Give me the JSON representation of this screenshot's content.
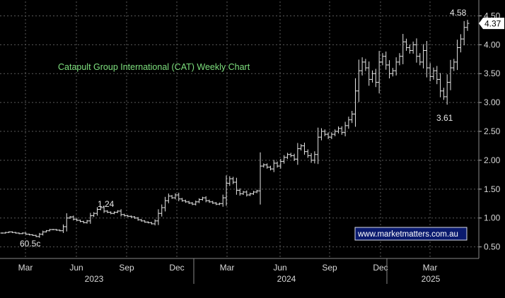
{
  "chart_data": {
    "type": "ohlc",
    "title": "Catapult Group International (CAT) Weekly Chart",
    "watermark": "www.marketmatters.com.au",
    "last_price_label": "4.37",
    "ylim": [
      0.3,
      4.75
    ],
    "y_ticks": [
      "0.50",
      "1.00",
      "1.50",
      "2.00",
      "2.50",
      "3.00",
      "3.50",
      "4.00",
      "4.50"
    ],
    "x_month_ticks": [
      "Mar",
      "Jun",
      "Sep",
      "Dec",
      "Mar",
      "Jun",
      "Sep",
      "Dec",
      "Mar"
    ],
    "x_year_labels": [
      "2023",
      "2024",
      "2025"
    ],
    "annotations": [
      {
        "text": "4.58",
        "value": 4.58
      },
      {
        "text": "1.24",
        "value": 1.24
      },
      {
        "text": "60.5c",
        "value": 0.605
      },
      {
        "text": "3.61",
        "value": 3.61
      }
    ],
    "closes": [
      0.74,
      0.75,
      0.76,
      0.75,
      0.74,
      0.73,
      0.74,
      0.72,
      0.71,
      0.7,
      0.68,
      0.72,
      0.76,
      0.78,
      0.8,
      0.8,
      0.79,
      0.78,
      0.85,
      1.0,
      1.02,
      0.98,
      0.96,
      0.94,
      0.92,
      0.95,
      1.04,
      1.08,
      1.15,
      1.18,
      1.12,
      1.1,
      1.08,
      1.1,
      1.12,
      1.06,
      1.04,
      1.03,
      1.02,
      1.0,
      0.97,
      0.95,
      0.93,
      0.92,
      0.9,
      0.95,
      1.08,
      1.18,
      1.3,
      1.38,
      1.35,
      1.4,
      1.33,
      1.3,
      1.28,
      1.26,
      1.24,
      1.28,
      1.32,
      1.35,
      1.3,
      1.28,
      1.26,
      1.24,
      1.25,
      1.35,
      1.6,
      1.68,
      1.62,
      1.48,
      1.42,
      1.45,
      1.4,
      1.42,
      1.45,
      1.47,
      1.9,
      1.92,
      1.88,
      1.85,
      1.95,
      1.9,
      1.98,
      2.05,
      2.1,
      2.08,
      2.02,
      2.2,
      2.25,
      2.15,
      2.08,
      2.0,
      2.1,
      2.4,
      2.5,
      2.45,
      2.4,
      2.45,
      2.5,
      2.55,
      2.48,
      2.6,
      2.7,
      2.8,
      3.2,
      3.55,
      3.7,
      3.6,
      3.4,
      3.5,
      3.35,
      3.7,
      3.8,
      3.65,
      3.5,
      3.55,
      3.7,
      3.8,
      4.05,
      3.95,
      3.9,
      4.0,
      3.8,
      3.7,
      3.9,
      3.6,
      3.45,
      3.55,
      3.4,
      3.2,
      3.1,
      3.35,
      3.6,
      3.7,
      3.95,
      4.1,
      4.3,
      4.37
    ]
  }
}
